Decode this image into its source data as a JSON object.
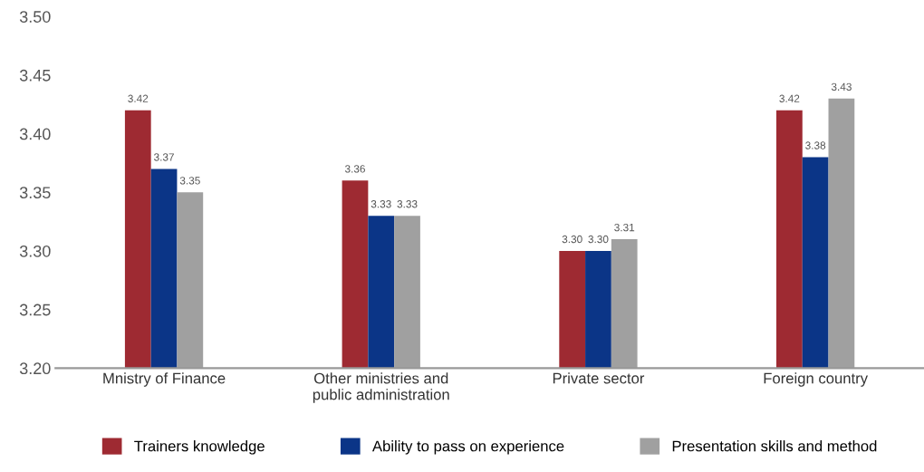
{
  "chart_data": {
    "type": "bar",
    "categories": [
      "Mnistry of Finance",
      "Other ministries and\npublic administration",
      "Private sector",
      "Foreign country"
    ],
    "series": [
      {
        "name": "Trainers knowledge",
        "color": "#9e2a32",
        "values": [
          3.42,
          3.36,
          3.3,
          3.42
        ],
        "value_labels": [
          "3.42",
          "3.36",
          "3.30",
          "3.42"
        ]
      },
      {
        "name": "Ability to pass on experience",
        "color": "#0b3587",
        "values": [
          3.37,
          3.33,
          3.3,
          3.38
        ],
        "value_labels": [
          "3.37",
          "3.33",
          "3.30",
          "3.38"
        ]
      },
      {
        "name": "Presentation skills and method",
        "color": "#a0a0a0",
        "values": [
          3.35,
          3.33,
          3.31,
          3.43
        ],
        "value_labels": [
          "3.35",
          "3.33",
          "3.31",
          "3.43"
        ]
      }
    ],
    "ylim": [
      3.2,
      3.5
    ],
    "yticks": [
      {
        "value": 3.2,
        "label": "3.20"
      },
      {
        "value": 3.25,
        "label": "3.25"
      },
      {
        "value": 3.3,
        "label": "3.30"
      },
      {
        "value": 3.35,
        "label": "3.35"
      },
      {
        "value": 3.4,
        "label": "3.40"
      },
      {
        "value": 3.45,
        "label": "3.45"
      },
      {
        "value": 3.5,
        "label": "3.50"
      }
    ],
    "grid": false,
    "legend": "bottom"
  }
}
